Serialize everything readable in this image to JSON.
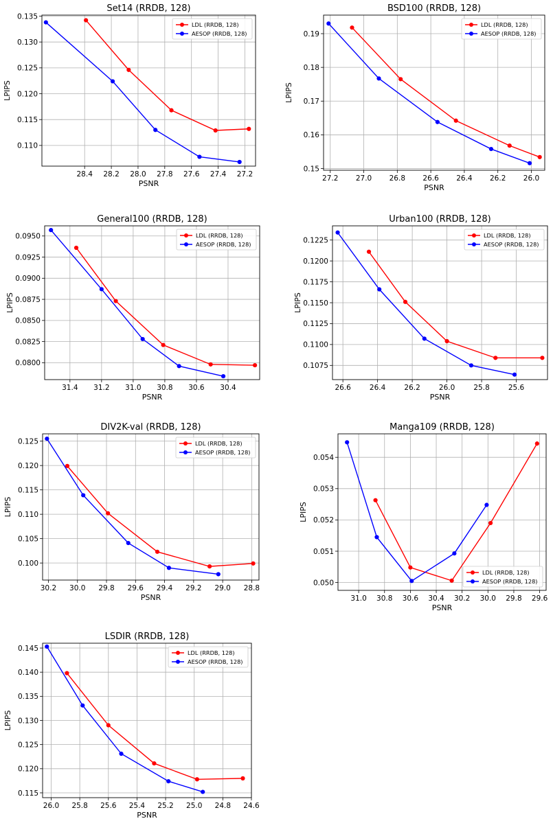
{
  "chart_data": [
    {
      "type": "line",
      "title": "Set14 (RRDB, 128)",
      "xlabel": "PSNR",
      "ylabel": "LPIPS",
      "xlim": [
        28.72,
        27.12
      ],
      "ylim": [
        0.106,
        0.1352
      ],
      "x_inverted": true,
      "xticks": [
        "28.4",
        "28.2",
        "28.0",
        "27.8",
        "27.6",
        "27.4",
        "27.2"
      ],
      "yticks": [
        "0.110",
        "0.115",
        "0.120",
        "0.125",
        "0.130",
        "0.135"
      ],
      "grid": true,
      "legend_position": "top-right",
      "series": [
        {
          "name": "LDL (RRDB, 128)",
          "color": "#ff0000",
          "x": [
            28.39,
            28.07,
            27.75,
            27.42,
            27.17
          ],
          "y": [
            0.1342,
            0.1246,
            0.1168,
            0.1129,
            0.1132
          ]
        },
        {
          "name": "AESOP (RRDB, 128)",
          "color": "#0000ff",
          "x": [
            28.69,
            28.19,
            27.87,
            27.54,
            27.24
          ],
          "y": [
            0.1338,
            0.1224,
            0.113,
            0.1078,
            0.1068
          ]
        }
      ]
    },
    {
      "type": "line",
      "title": "BSD100 (RRDB, 128)",
      "xlabel": "PSNR",
      "ylabel": "LPIPS",
      "xlim": [
        27.24,
        25.92
      ],
      "ylim": [
        0.1495,
        0.1955
      ],
      "x_inverted": true,
      "xticks": [
        "27.2",
        "27.0",
        "26.8",
        "26.6",
        "26.4",
        "26.2",
        "26.0"
      ],
      "yticks": [
        "0.15",
        "0.16",
        "0.17",
        "0.18",
        "0.19"
      ],
      "grid": true,
      "legend_position": "top-right",
      "series": [
        {
          "name": "LDL (RRDB, 128)",
          "color": "#ff0000",
          "x": [
            27.07,
            26.78,
            26.45,
            26.13,
            25.95
          ],
          "y": [
            0.1918,
            0.1765,
            0.1642,
            0.1568,
            0.1534
          ]
        },
        {
          "name": "AESOP (RRDB, 128)",
          "color": "#0000ff",
          "x": [
            27.21,
            26.91,
            26.56,
            26.24,
            26.01
          ],
          "y": [
            0.193,
            0.1767,
            0.1638,
            0.1558,
            0.1516
          ]
        }
      ]
    },
    {
      "type": "line",
      "title": "General100 (RRDB, 128)",
      "xlabel": "PSNR",
      "ylabel": "LPIPS",
      "xlim": [
        31.56,
        30.2
      ],
      "ylim": [
        0.078,
        0.0962
      ],
      "x_inverted": true,
      "xticks": [
        "31.4",
        "31.2",
        "31.0",
        "30.8",
        "30.6",
        "30.4"
      ],
      "yticks": [
        "0.0800",
        "0.0825",
        "0.0850",
        "0.0875",
        "0.0900",
        "0.0925",
        "0.0950"
      ],
      "grid": true,
      "legend_position": "top-right",
      "series": [
        {
          "name": "LDL (RRDB, 128)",
          "color": "#ff0000",
          "x": [
            31.36,
            31.11,
            30.81,
            30.51,
            30.23
          ],
          "y": [
            0.0936,
            0.0873,
            0.0821,
            0.0798,
            0.0797
          ]
        },
        {
          "name": "AESOP (RRDB, 128)",
          "color": "#0000ff",
          "x": [
            31.52,
            31.2,
            30.94,
            30.71,
            30.43
          ],
          "y": [
            0.0957,
            0.0887,
            0.0828,
            0.0796,
            0.0784
          ]
        }
      ]
    },
    {
      "type": "line",
      "title": "Urban100 (RRDB, 128)",
      "xlabel": "PSNR",
      "ylabel": "LPIPS",
      "xlim": [
        26.66,
        25.42
      ],
      "ylim": [
        0.1058,
        0.1242
      ],
      "x_inverted": true,
      "xticks": [
        "26.6",
        "26.4",
        "26.2",
        "26.0",
        "25.8",
        "25.6"
      ],
      "yticks": [
        "0.1075",
        "0.1100",
        "0.1125",
        "0.1150",
        "0.1175",
        "0.1200",
        "0.1225"
      ],
      "grid": true,
      "legend_position": "top-right",
      "series": [
        {
          "name": "LDL (RRDB, 128)",
          "color": "#ff0000",
          "x": [
            26.45,
            26.24,
            26.0,
            25.72,
            25.45
          ],
          "y": [
            0.1211,
            0.1151,
            0.1104,
            0.1084,
            0.1084
          ]
        },
        {
          "name": "AESOP (RRDB, 128)",
          "color": "#0000ff",
          "x": [
            26.63,
            26.39,
            26.13,
            25.86,
            25.61
          ],
          "y": [
            0.1234,
            0.1166,
            0.1107,
            0.1075,
            0.1064
          ]
        }
      ]
    },
    {
      "type": "line",
      "title": "DIV2K-val (RRDB, 128)",
      "xlabel": "PSNR",
      "ylabel": "LPIPS",
      "xlim": [
        30.24,
        28.75
      ],
      "ylim": [
        0.0965,
        0.1265
      ],
      "x_inverted": true,
      "xticks": [
        "30.2",
        "30.0",
        "29.8",
        "29.6",
        "29.4",
        "29.2",
        "29.0",
        "28.8"
      ],
      "yticks": [
        "0.100",
        "0.105",
        "0.110",
        "0.115",
        "0.120",
        "0.125"
      ],
      "grid": true,
      "legend_position": "top-right",
      "series": [
        {
          "name": "LDL (RRDB, 128)",
          "color": "#ff0000",
          "x": [
            30.07,
            29.79,
            29.45,
            29.09,
            28.79
          ],
          "y": [
            0.1199,
            0.1102,
            0.1023,
            0.0993,
            0.0999
          ]
        },
        {
          "name": "AESOP (RRDB, 128)",
          "color": "#0000ff",
          "x": [
            30.21,
            29.96,
            29.65,
            29.37,
            29.03
          ],
          "y": [
            0.1255,
            0.1139,
            0.1041,
            0.099,
            0.0977
          ]
        }
      ]
    },
    {
      "type": "line",
      "title": "Manga109 (RRDB, 128)",
      "xlabel": "PSNR",
      "ylabel": "LPIPS",
      "xlim": [
        31.16,
        29.55
      ],
      "ylim": [
        0.04975,
        0.05475
      ],
      "x_inverted": true,
      "xticks": [
        "31.0",
        "30.8",
        "30.6",
        "30.4",
        "30.2",
        "30.0",
        "29.8",
        "29.6"
      ],
      "yticks": [
        "0.050",
        "0.051",
        "0.052",
        "0.053",
        "0.054"
      ],
      "grid": true,
      "legend_position": "bottom-right",
      "series": [
        {
          "name": "LDL (RRDB, 128)",
          "color": "#ff0000",
          "x": [
            30.87,
            30.6,
            30.28,
            29.98,
            29.62
          ],
          "y": [
            0.05263,
            0.05048,
            0.05006,
            0.0519,
            0.05444
          ]
        },
        {
          "name": "AESOP (RRDB, 128)",
          "color": "#0000ff",
          "x": [
            31.09,
            30.86,
            30.59,
            30.26,
            30.01
          ],
          "y": [
            0.05448,
            0.05145,
            0.05005,
            0.05093,
            0.05248
          ]
        }
      ]
    },
    {
      "type": "line",
      "title": "LSDIR (RRDB, 128)",
      "xlabel": "PSNR",
      "ylabel": "LPIPS",
      "xlim": [
        26.06,
        24.6
      ],
      "ylim": [
        0.114,
        0.146
      ],
      "x_inverted": true,
      "xticks": [
        "26.0",
        "25.8",
        "25.6",
        "25.4",
        "25.2",
        "25.0",
        "24.8",
        "24.6"
      ],
      "yticks": [
        "0.115",
        "0.120",
        "0.125",
        "0.130",
        "0.135",
        "0.140",
        "0.145"
      ],
      "grid": true,
      "legend_position": "top-right",
      "series": [
        {
          "name": "LDL (RRDB, 128)",
          "color": "#ff0000",
          "x": [
            25.89,
            25.6,
            25.28,
            24.98,
            24.66
          ],
          "y": [
            0.1398,
            0.129,
            0.1211,
            0.1178,
            0.118
          ]
        },
        {
          "name": "AESOP (RRDB, 128)",
          "color": "#0000ff",
          "x": [
            26.03,
            25.78,
            25.51,
            25.18,
            24.94
          ],
          "y": [
            0.1453,
            0.1331,
            0.1231,
            0.1174,
            0.1152
          ]
        }
      ]
    }
  ]
}
